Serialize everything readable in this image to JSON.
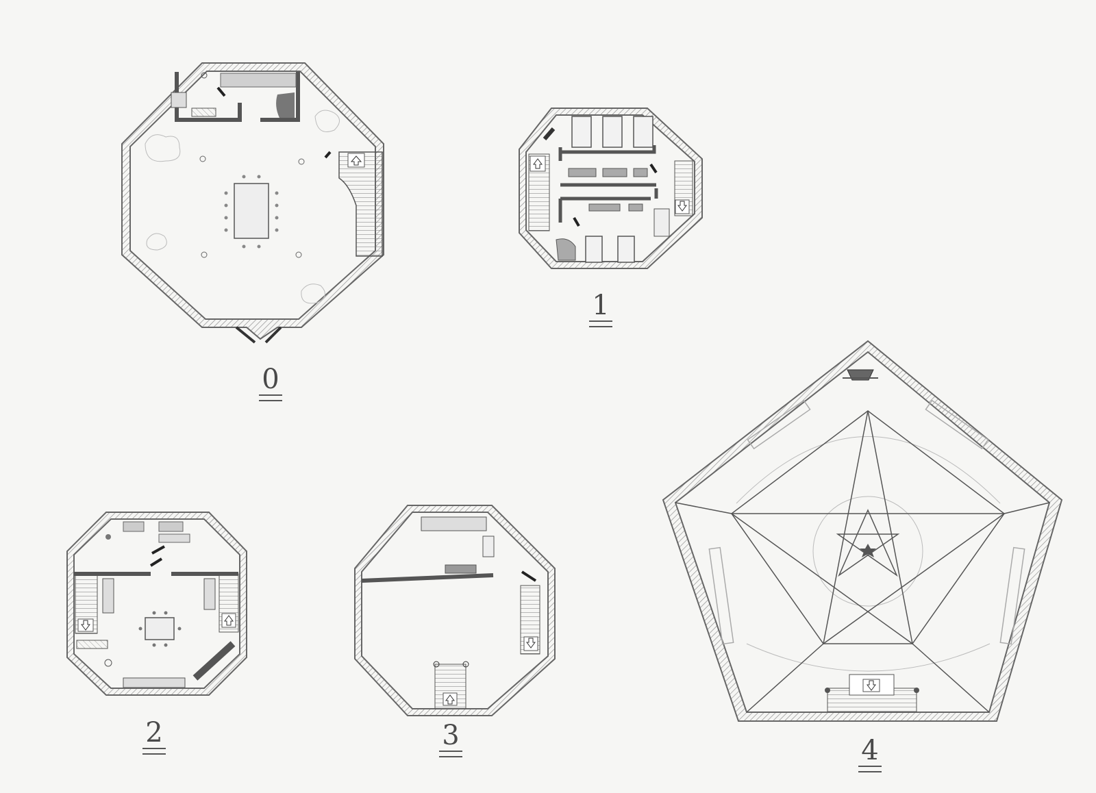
{
  "floors": [
    {
      "id": "floor-0",
      "label": "0"
    },
    {
      "id": "floor-1",
      "label": "1"
    },
    {
      "id": "floor-2",
      "label": "2"
    },
    {
      "id": "floor-3",
      "label": "3"
    },
    {
      "id": "floor-4",
      "label": "4"
    }
  ],
  "colors": {
    "paper": "#f6f6f4",
    "pencil": "#5a5a5a",
    "wall_hatch": "#8a8a8a",
    "shade": "#c8c8c8"
  }
}
